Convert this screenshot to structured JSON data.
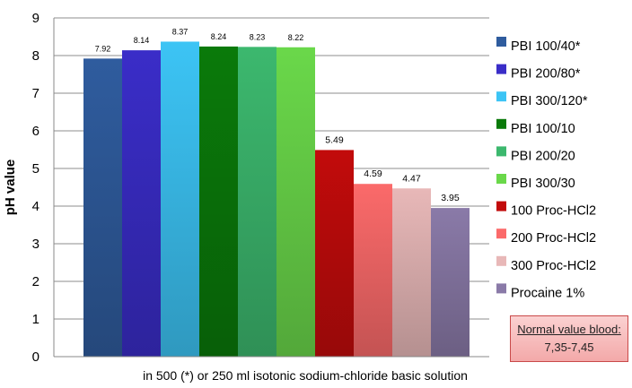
{
  "chart_data": {
    "type": "bar",
    "categories": [
      "PBI 100/40*",
      "PBI 200/80*",
      "PBI 300/120*",
      "PBI 100/10",
      "PBI 200/20",
      "PBI 300/30",
      "100 Proc-HCl2",
      "200 Proc-HCl2",
      "300 Proc-HCl2",
      "Procaine 1%"
    ],
    "values": [
      7.92,
      8.14,
      8.37,
      8.24,
      8.23,
      8.22,
      5.49,
      4.59,
      4.47,
      3.95
    ],
    "value_labels": [
      "7.92",
      "8.14",
      "8.37",
      "8.24",
      "8.23",
      "8.22",
      "5.49",
      "4.59",
      "4.47",
      "3.95"
    ],
    "colors": [
      "#2f5c9e",
      "#3a2dc8",
      "#3cc4f5",
      "#0a7a0a",
      "#3cb86e",
      "#6ad84a",
      "#c20b0b",
      "#fb6a6a",
      "#e8b8b8",
      "#8a7aa8"
    ],
    "ylabel": "pH value",
    "xlabel": "in 500 (*) or 250 ml isotonic sodium-chloride basic solution",
    "ylim": [
      0,
      9
    ],
    "yticks": [
      "0",
      "1",
      "2",
      "3",
      "4",
      "5",
      "6",
      "7",
      "8",
      "9"
    ],
    "grid": true,
    "legend": "right",
    "annotation": {
      "line1": "Normal value blood:",
      "line2": "7,35-7,45"
    }
  }
}
